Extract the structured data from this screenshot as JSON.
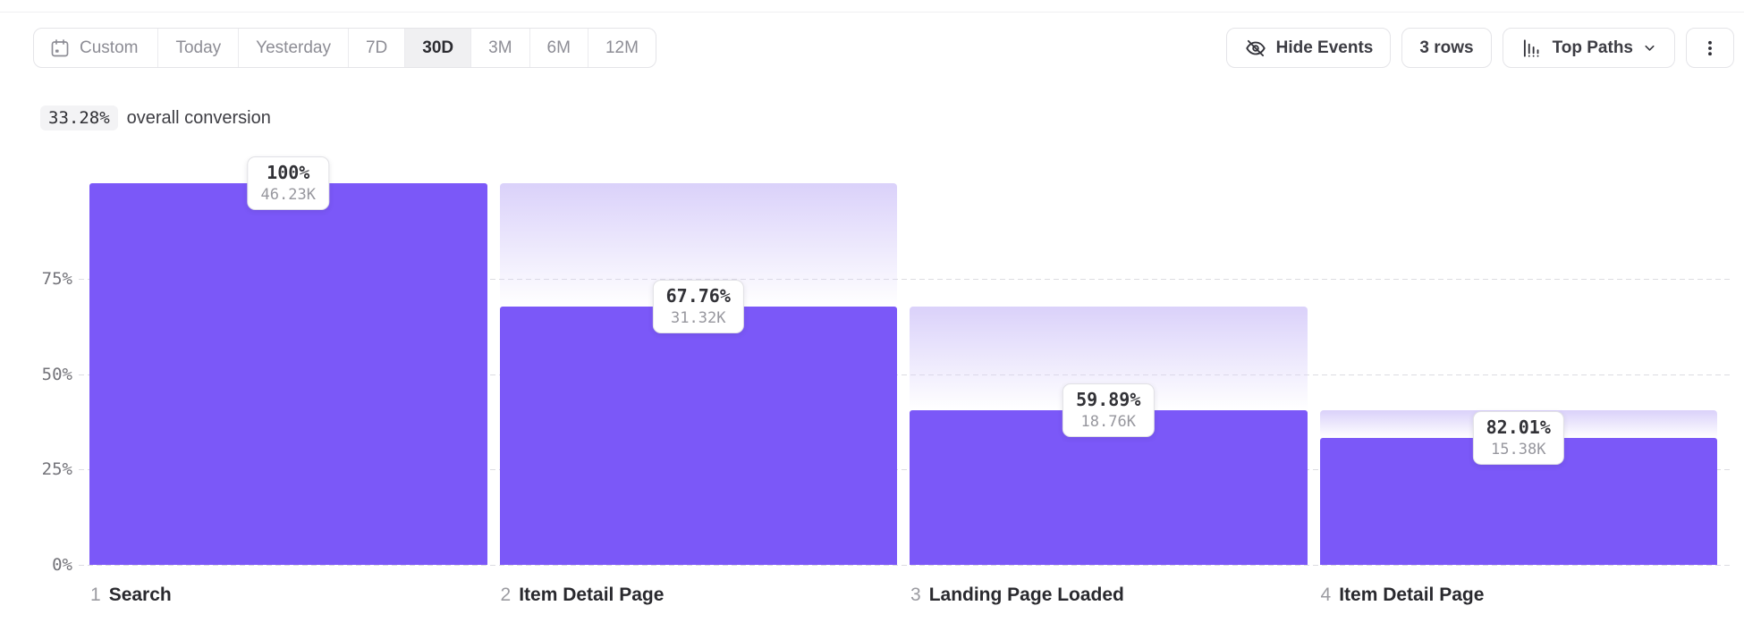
{
  "toolbar": {
    "date_ranges": [
      {
        "label": "Custom",
        "selected": false,
        "icon": "calendar"
      },
      {
        "label": "Today",
        "selected": false
      },
      {
        "label": "Yesterday",
        "selected": false
      },
      {
        "label": "7D",
        "selected": false
      },
      {
        "label": "30D",
        "selected": true
      },
      {
        "label": "3M",
        "selected": false
      },
      {
        "label": "6M",
        "selected": false
      },
      {
        "label": "12M",
        "selected": false
      }
    ],
    "hide_events_label": "Hide Events",
    "rows_label": "3 rows",
    "top_paths_label": "Top Paths"
  },
  "icons": {
    "custom_range": "calendar-icon",
    "hide_events": "eye-off-icon",
    "top_paths": "bar-chart-icon",
    "top_paths_caret": "chevron-down-icon",
    "more_menu": "kebab-vertical-icon"
  },
  "summary": {
    "value": "33.28%",
    "label": "overall conversion"
  },
  "chart_data": {
    "type": "bar",
    "variant": "funnel",
    "title": "",
    "overall_conversion": "33.28%",
    "categories": [
      "Search",
      "Item Detail Page",
      "Landing Page Loaded",
      "Item Detail Page"
    ],
    "steps": [
      {
        "index": 1,
        "label": "Search",
        "conversion_pct": "100%",
        "count": "46.23K",
        "height_pct": 100
      },
      {
        "index": 2,
        "label": "Item Detail Page",
        "conversion_pct": "67.76%",
        "count": "31.32K",
        "height_pct": 67.76
      },
      {
        "index": 3,
        "label": "Landing Page Loaded",
        "conversion_pct": "59.89%",
        "count": "18.76K",
        "height_pct": 40.58
      },
      {
        "index": 4,
        "label": "Item Detail Page",
        "conversion_pct": "82.01%",
        "count": "15.38K",
        "height_pct": 33.27
      }
    ],
    "y_ticks": [
      {
        "label": "75%",
        "value": 75
      },
      {
        "label": "50%",
        "value": 50
      },
      {
        "label": "25%",
        "value": 25
      },
      {
        "label": "0%",
        "value": 0
      }
    ],
    "ylim": [
      0,
      100
    ],
    "grid": "horizontal-dashed",
    "legend": "none",
    "colors": {
      "bar": "#7B58F8",
      "gradient_top": "#DAD1FA",
      "gridline": "#DCDCE1"
    }
  }
}
